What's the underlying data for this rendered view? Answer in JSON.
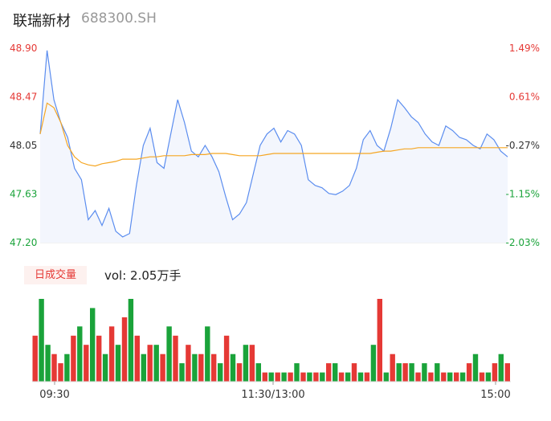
{
  "header": {
    "name": "联瑞新材",
    "code": "688300.SH"
  },
  "volume_panel": {
    "badge": "日成交量",
    "label": "vol: 2.05万手"
  },
  "colors": {
    "up": "#e53935",
    "down": "#1aa33a",
    "price_line": "#5b8def",
    "avg_line": "#f5a623",
    "area": "#f3f6fd"
  },
  "chart_data": [
    {
      "type": "line",
      "title": "",
      "y_ticks_left": [
        "48.90",
        "48.47",
        "48.05",
        "47.63",
        "47.20"
      ],
      "y_ticks_right": [
        "1.49%",
        "0.61%",
        "-0.27%",
        "-1.15%",
        "-2.03%"
      ],
      "ylim": [
        47.2,
        48.9
      ],
      "x_ticks": [
        "09:30",
        "11:30/13:00",
        "15:00"
      ],
      "series": [
        {
          "role": "price",
          "values": [
            48.15,
            48.88,
            48.45,
            48.25,
            48.12,
            47.85,
            47.75,
            47.4,
            47.48,
            47.35,
            47.5,
            47.3,
            47.25,
            47.28,
            47.7,
            48.05,
            48.2,
            47.9,
            47.85,
            48.15,
            48.45,
            48.25,
            48.0,
            47.95,
            48.05,
            47.95,
            47.82,
            47.6,
            47.4,
            47.45,
            47.55,
            47.8,
            48.05,
            48.15,
            48.2,
            48.08,
            48.18,
            48.15,
            48.05,
            47.75,
            47.7,
            47.68,
            47.63,
            47.62,
            47.65,
            47.7,
            47.85,
            48.1,
            48.18,
            48.05,
            48.0,
            48.2,
            48.45,
            48.38,
            48.3,
            48.25,
            48.15,
            48.08,
            48.05,
            48.22,
            48.18,
            48.12,
            48.1,
            48.05,
            48.02,
            48.15,
            48.1,
            48.0,
            47.95
          ]
        },
        {
          "role": "average",
          "values": [
            48.15,
            48.42,
            48.38,
            48.25,
            48.05,
            47.95,
            47.9,
            47.88,
            47.87,
            47.89,
            47.9,
            47.91,
            47.93,
            47.93,
            47.93,
            47.94,
            47.95,
            47.95,
            47.96,
            47.96,
            47.96,
            47.96,
            47.97,
            47.97,
            47.97,
            47.98,
            47.98,
            47.98,
            47.97,
            47.96,
            47.96,
            47.96,
            47.96,
            47.97,
            47.98,
            47.98,
            47.98,
            47.98,
            47.98,
            47.98,
            47.98,
            47.98,
            47.98,
            47.98,
            47.98,
            47.98,
            47.98,
            47.98,
            47.98,
            47.99,
            48.0,
            48.0,
            48.01,
            48.02,
            48.02,
            48.03,
            48.03,
            48.03,
            48.03,
            48.03,
            48.03,
            48.03,
            48.03,
            48.03,
            48.03,
            48.03,
            48.03,
            48.03,
            48.03
          ]
        }
      ]
    },
    {
      "type": "bar",
      "title": "日成交量",
      "values": [
        5,
        9,
        4,
        3,
        2,
        3,
        5,
        6,
        4,
        8,
        5,
        3,
        6,
        4,
        7,
        9,
        5,
        3,
        4,
        4,
        3,
        6,
        5,
        2,
        4,
        3,
        3,
        6,
        3,
        2,
        5,
        3,
        2,
        4,
        4,
        2,
        1,
        1,
        1,
        1,
        1,
        2,
        1,
        1,
        1,
        1,
        2,
        2,
        1,
        1,
        2,
        1,
        1,
        4,
        9,
        1,
        3,
        2,
        2,
        2,
        1,
        2,
        1,
        2,
        1,
        1,
        1,
        1,
        2,
        3,
        1,
        1,
        2,
        3,
        2
      ],
      "up": [
        true,
        false,
        false,
        true,
        true,
        false,
        true,
        false,
        true,
        false,
        true,
        false,
        true,
        false,
        true,
        false,
        true,
        false,
        true,
        false,
        true,
        false,
        true,
        false,
        true,
        false,
        true,
        false,
        true,
        false,
        true,
        false,
        true,
        false,
        true,
        false,
        true,
        false,
        true,
        false,
        true,
        false,
        true,
        false,
        true,
        false,
        true,
        false,
        true,
        false,
        true,
        false,
        true,
        false,
        true,
        false,
        true,
        false,
        true,
        false,
        true,
        false,
        true,
        false,
        true,
        false,
        true,
        false,
        true,
        false,
        true,
        false,
        true,
        false,
        true
      ]
    }
  ]
}
